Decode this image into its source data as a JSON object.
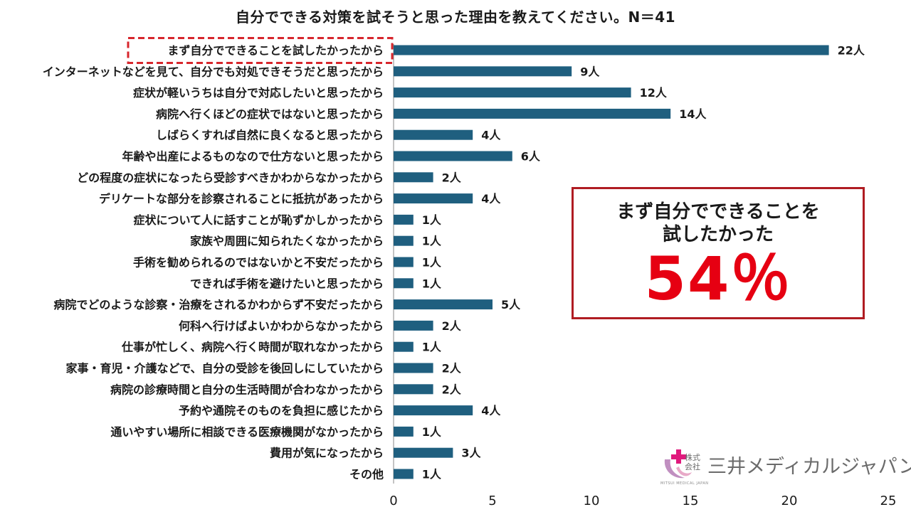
{
  "chart_data": {
    "type": "bar",
    "orientation": "horizontal",
    "title": "自分でできる対策を試そうと思った理由を教えてください。N＝41",
    "categories": [
      "まず自分でできることを試したかったから",
      "インターネットなどを見て、自分でも対処できそうだと思ったから",
      "症状が軽いうちは自分で対応したいと思ったから",
      "病院へ行くほどの症状ではないと思ったから",
      "しばらくすれば自然に良くなると思ったから",
      "年齢や出産によるものなので仕方ないと思ったから",
      "どの程度の症状になったら受診すべきかわからなかったから",
      "デリケートな部分を診察されることに抵抗があったから",
      "症状について人に話すことが恥ずかしかったから",
      "家族や周囲に知られたくなかったから",
      "手術を勧められるのではないかと不安だったから",
      "できれば手術を避けたいと思ったから",
      "病院でどのような診察・治療をされるかわからず不安だったから",
      "何科へ行けばよいかわからなかったから",
      "仕事が忙しく、病院へ行く時間が取れなかったから",
      "家事・育児・介護などで、自分の受診を後回しにしていたから",
      "病院の診療時間と自分の生活時間が合わなかったから",
      "予約や通院そのものを負担に感じたから",
      "通いやすい場所に相談できる医療機関がなかったから",
      "費用が気になったから",
      "その他"
    ],
    "values": [
      22,
      9,
      12,
      14,
      4,
      6,
      2,
      4,
      1,
      1,
      1,
      1,
      5,
      2,
      1,
      2,
      2,
      4,
      1,
      3,
      1
    ],
    "value_labels": [
      "22人",
      "9人",
      "12人",
      "14人",
      "4人",
      "6人",
      "2人",
      "4人",
      "1人",
      "1人",
      "1人",
      "1人",
      "5人",
      "2人",
      "1人",
      "2人",
      "2人",
      "4人",
      "1人",
      "3人",
      "1人"
    ],
    "xlim": [
      0,
      25
    ],
    "xticks": [
      0,
      5,
      10,
      15,
      20,
      25
    ],
    "grid": false,
    "highlighted_category_index": 0,
    "colors": {
      "bar": "#1f5f7f",
      "highlight_border": "#d7262c",
      "callout_border": "#b01c22",
      "callout_value": "#e60012"
    }
  },
  "callout": {
    "text": "まず自分でできることを\n試したかった",
    "value": "54％"
  },
  "logo": {
    "kabushiki": "株式\n会社",
    "name": "三井メディカルジャパン",
    "name_en": "MITSUI MEDICAL JAPAN",
    "colors": {
      "cross": "#e0197d",
      "swoosh": "#c08fc0",
      "text": "#6b6b6b"
    }
  }
}
